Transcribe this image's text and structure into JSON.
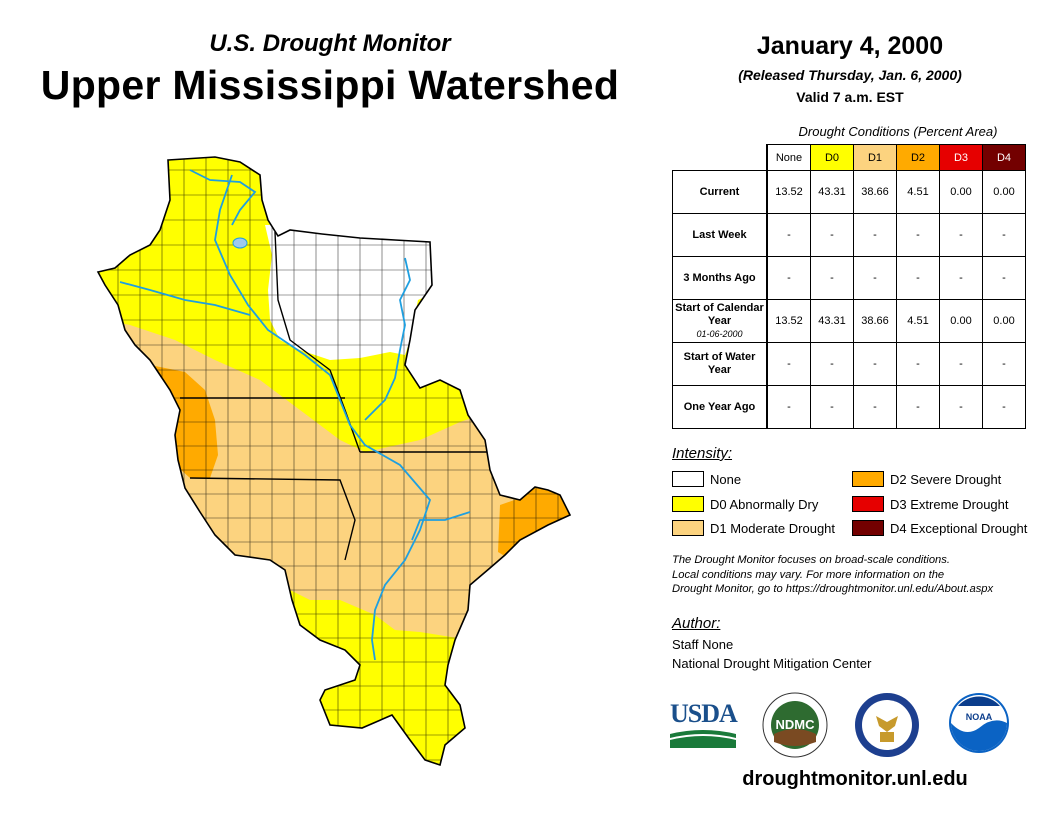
{
  "header": {
    "subtitle": "U.S. Drought Monitor",
    "title": "Upper Mississippi Watershed",
    "date": "January 4, 2000",
    "released": "(Released Thursday, Jan. 6, 2000)",
    "valid": "Valid 7 a.m. EST"
  },
  "table": {
    "caption": "Drought Conditions (Percent Area)",
    "columns": [
      "None",
      "D0",
      "D1",
      "D2",
      "D3",
      "D4"
    ],
    "column_colors": [
      "#ffffff",
      "#ffff00",
      "#fcd37f",
      "#ffaa00",
      "#e60000",
      "#730000"
    ],
    "rows": [
      {
        "label": "Current",
        "sub": "",
        "values": [
          "13.52",
          "43.31",
          "38.66",
          "4.51",
          "0.00",
          "0.00"
        ]
      },
      {
        "label": "Last Week",
        "sub": "",
        "values": [
          "-",
          "-",
          "-",
          "-",
          "-",
          "-"
        ]
      },
      {
        "label": "3 Months Ago",
        "sub": "",
        "values": [
          "-",
          "-",
          "-",
          "-",
          "-",
          "-"
        ]
      },
      {
        "label": "Start of Calendar Year",
        "sub": "01-06-2000",
        "values": [
          "13.52",
          "43.31",
          "38.66",
          "4.51",
          "0.00",
          "0.00"
        ]
      },
      {
        "label": "Start of Water Year",
        "sub": "",
        "values": [
          "-",
          "-",
          "-",
          "-",
          "-",
          "-"
        ]
      },
      {
        "label": "One Year Ago",
        "sub": "",
        "values": [
          "-",
          "-",
          "-",
          "-",
          "-",
          "-"
        ]
      }
    ]
  },
  "legend": {
    "title": "Intensity:",
    "items": [
      {
        "label": "None",
        "color": "#ffffff"
      },
      {
        "label": "D0 Abnormally Dry",
        "color": "#ffff00"
      },
      {
        "label": "D1 Moderate Drought",
        "color": "#fcd37f"
      },
      {
        "label": "D2 Severe Drought",
        "color": "#ffaa00"
      },
      {
        "label": "D3 Extreme Drought",
        "color": "#e60000"
      },
      {
        "label": "D4 Exceptional Drought",
        "color": "#730000"
      }
    ]
  },
  "note": {
    "line1": "The Drought Monitor focuses on broad-scale conditions.",
    "line2": "Local conditions may vary. For more information on the",
    "line3": "Drought Monitor, go to https://droughtmonitor.unl.edu/About.aspx"
  },
  "author": {
    "title": "Author:",
    "name": "Staff None",
    "org": "National Drought Mitigation Center"
  },
  "logos": {
    "usda": "USDA",
    "ndmc": "NDMC",
    "noaa": "NOAA"
  },
  "website": "droughtmonitor.unl.edu",
  "map": {
    "colors": {
      "none": "#ffffff",
      "d0": "#ffff00",
      "d1": "#fcd37f",
      "d2": "#ffaa00",
      "water": "#1e9fe0",
      "lake": "#9dc9f0",
      "boundary": "#000000"
    }
  }
}
